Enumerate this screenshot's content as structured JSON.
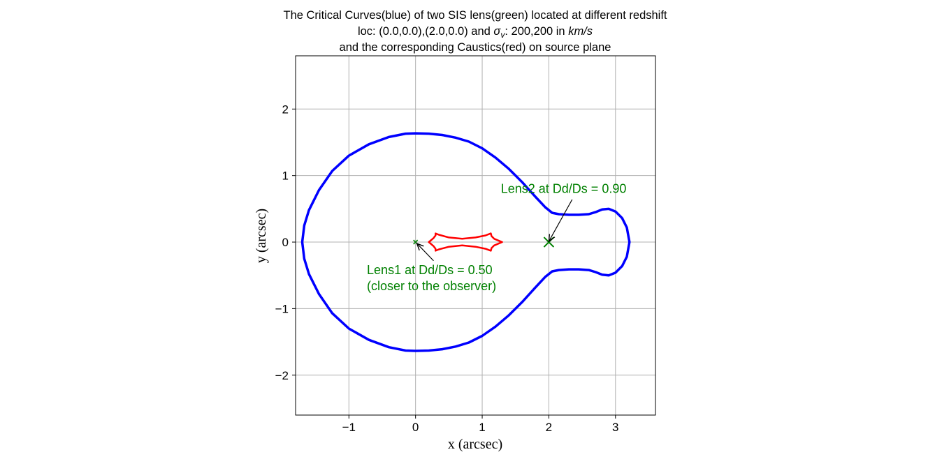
{
  "chart_data": {
    "type": "scatter",
    "title": {
      "line1": "The Critical Curves(blue) of two SIS lens(green) located at different redshift",
      "line2_prefix": "loc: (0.0,0.0),(2.0,0.0) and ",
      "line2_sigma": "σ",
      "line2_sub": "v",
      "line2_mid": ": 200,200 in ",
      "line2_units": "km/s",
      "line3": "and the corresponding Caustics(red) on source plane"
    },
    "xlabel": "x (arcsec)",
    "ylabel": "y (arcsec)",
    "xlim": [
      -1.8,
      3.6
    ],
    "ylim": [
      -2.6,
      2.8
    ],
    "xticks": [
      -1,
      0,
      1,
      2,
      3
    ],
    "yticks": [
      -2,
      -1,
      0,
      1,
      2
    ],
    "xtick_labels": [
      "−1",
      "0",
      "1",
      "2",
      "3"
    ],
    "ytick_labels": [
      "−2",
      "−1",
      "0",
      "1",
      "2"
    ],
    "grid": true,
    "lenses": [
      {
        "x": 0.0,
        "y": 0.0,
        "dd_ds": 0.5
      },
      {
        "x": 2.0,
        "y": 0.0,
        "dd_ds": 0.9
      }
    ],
    "critical_curve": {
      "color": "#0000ff",
      "points": [
        [
          2.6,
          0.42
        ],
        [
          2.7,
          0.45
        ],
        [
          2.8,
          0.49
        ],
        [
          2.9,
          0.5
        ],
        [
          3.0,
          0.46
        ],
        [
          3.1,
          0.36
        ],
        [
          3.17,
          0.22
        ],
        [
          3.21,
          0.0
        ],
        [
          3.17,
          -0.22
        ],
        [
          3.1,
          -0.36
        ],
        [
          3.0,
          -0.46
        ],
        [
          2.9,
          -0.5
        ],
        [
          2.8,
          -0.49
        ],
        [
          2.7,
          -0.45
        ],
        [
          2.6,
          -0.42
        ],
        [
          2.45,
          -0.41
        ],
        [
          2.3,
          -0.41
        ],
        [
          2.15,
          -0.42
        ],
        [
          2.05,
          -0.44
        ],
        [
          1.95,
          -0.52
        ],
        [
          1.8,
          -0.68
        ],
        [
          1.6,
          -0.9
        ],
        [
          1.4,
          -1.1
        ],
        [
          1.2,
          -1.27
        ],
        [
          1.0,
          -1.41
        ],
        [
          0.8,
          -1.51
        ],
        [
          0.6,
          -1.57
        ],
        [
          0.4,
          -1.61
        ],
        [
          0.2,
          -1.63
        ],
        [
          0.0,
          -1.635
        ],
        [
          -0.15,
          -1.63
        ],
        [
          -0.4,
          -1.58
        ],
        [
          -0.7,
          -1.47
        ],
        [
          -1.0,
          -1.3
        ],
        [
          -1.25,
          -1.07
        ],
        [
          -1.45,
          -0.78
        ],
        [
          -1.6,
          -0.48
        ],
        [
          -1.67,
          -0.25
        ],
        [
          -1.7,
          0.0
        ],
        [
          -1.67,
          0.25
        ],
        [
          -1.6,
          0.48
        ],
        [
          -1.45,
          0.78
        ],
        [
          -1.25,
          1.07
        ],
        [
          -1.0,
          1.3
        ],
        [
          -0.7,
          1.47
        ],
        [
          -0.4,
          1.58
        ],
        [
          -0.15,
          1.63
        ],
        [
          0.0,
          1.635
        ],
        [
          0.2,
          1.63
        ],
        [
          0.4,
          1.61
        ],
        [
          0.6,
          1.57
        ],
        [
          0.8,
          1.51
        ],
        [
          1.0,
          1.41
        ],
        [
          1.2,
          1.27
        ],
        [
          1.4,
          1.1
        ],
        [
          1.6,
          0.9
        ],
        [
          1.8,
          0.68
        ],
        [
          1.95,
          0.52
        ],
        [
          2.05,
          0.44
        ],
        [
          2.15,
          0.42
        ],
        [
          2.3,
          0.41
        ],
        [
          2.45,
          0.41
        ],
        [
          2.6,
          0.42
        ]
      ]
    },
    "caustic": {
      "color": "#ff0000",
      "points": [
        [
          0.2,
          0.0
        ],
        [
          0.27,
          0.06
        ],
        [
          0.3,
          0.1
        ],
        [
          0.3,
          0.13
        ],
        [
          0.35,
          0.11
        ],
        [
          0.5,
          0.07
        ],
        [
          0.7,
          0.05
        ],
        [
          0.9,
          0.07
        ],
        [
          1.05,
          0.1
        ],
        [
          1.13,
          0.13
        ],
        [
          1.14,
          0.09
        ],
        [
          1.18,
          0.05
        ],
        [
          1.3,
          0.0
        ],
        [
          1.18,
          -0.05
        ],
        [
          1.14,
          -0.09
        ],
        [
          1.13,
          -0.13
        ],
        [
          1.05,
          -0.1
        ],
        [
          0.9,
          -0.07
        ],
        [
          0.7,
          -0.05
        ],
        [
          0.5,
          -0.07
        ],
        [
          0.35,
          -0.11
        ],
        [
          0.3,
          -0.13
        ],
        [
          0.3,
          -0.1
        ],
        [
          0.27,
          -0.06
        ],
        [
          0.2,
          0.0
        ]
      ]
    },
    "annotations": [
      {
        "text_line1": "Lens2 at Dd/Ds = 0.90",
        "text_line2": "",
        "text_x": 1.28,
        "text_y": 0.74,
        "arrow_from": [
          2.35,
          0.64
        ],
        "arrow_to": [
          2.0,
          0.01
        ]
      },
      {
        "text_line1": "Lens1 at Dd/Ds = 0.50",
        "text_line2": " (closer to the observer)",
        "text_x": -0.73,
        "text_y": -0.48,
        "arrow_from": [
          0.27,
          -0.28
        ],
        "arrow_to": [
          0.02,
          -0.02
        ]
      }
    ],
    "colors": {
      "critical": "#0000ff",
      "caustic": "#ff0000",
      "lens": "#008000",
      "grid": "#b0b0b0"
    }
  }
}
